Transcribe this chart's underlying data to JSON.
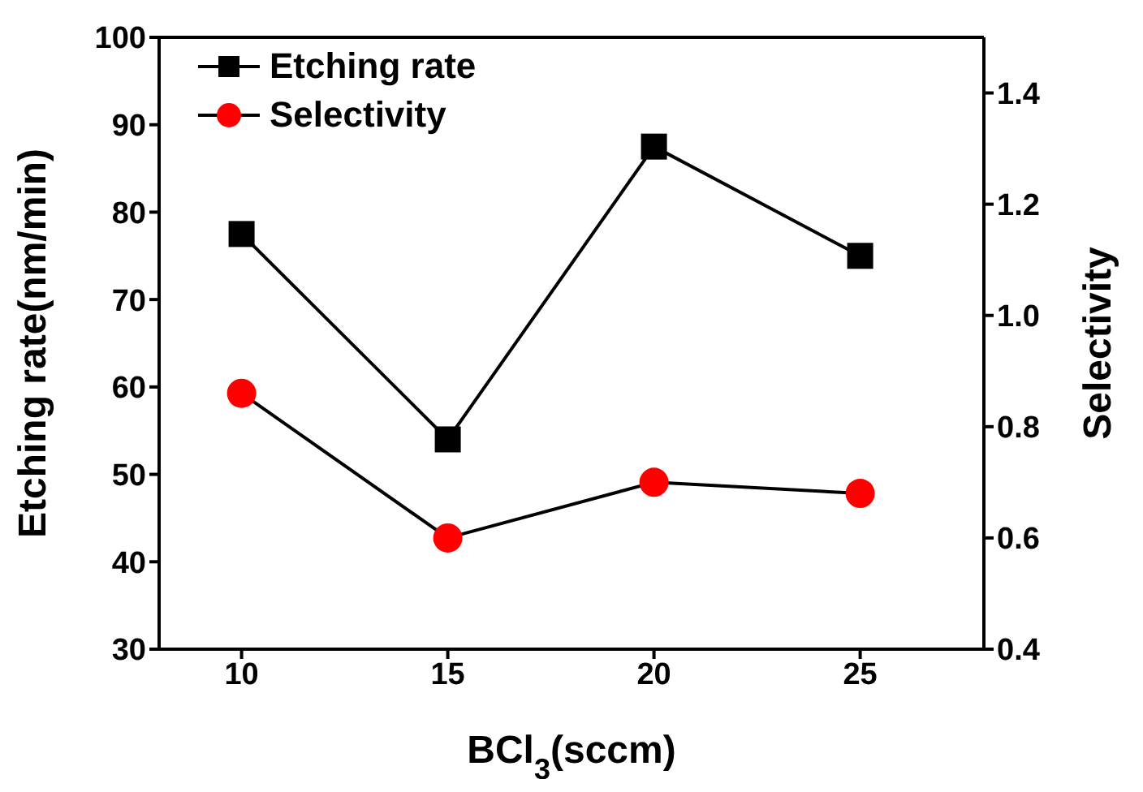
{
  "chart_data": {
    "type": "line",
    "xlabel": "BCl$_{3}$(sccm)",
    "ylabel": "Etching rate(nm/min)",
    "y2label": "Selectivity",
    "x": [
      10,
      15,
      20,
      25
    ],
    "xlim": [
      8,
      28
    ],
    "xticks": [
      10,
      15,
      20,
      25
    ],
    "ylim": [
      30,
      100
    ],
    "yticks": [
      30,
      40,
      50,
      60,
      70,
      80,
      90,
      100
    ],
    "y2lim": [
      0.4,
      1.5
    ],
    "y2ticks": [
      0.4,
      0.6,
      0.8,
      {
        "value": 1,
        "label": "1.0"
      },
      1.2,
      1.4
    ],
    "series": [
      {
        "name": "Etching rate",
        "color": "#000000",
        "marker": "square",
        "values": [
          77.5,
          54,
          87.5,
          75
        ]
      },
      {
        "name": "Selectivity",
        "color": "#ff0000",
        "marker": "circle",
        "axis": "y2",
        "values": [
          0.86,
          0.6,
          0.7,
          0.68
        ]
      }
    ],
    "legend": "top left",
    "grid": false
  }
}
